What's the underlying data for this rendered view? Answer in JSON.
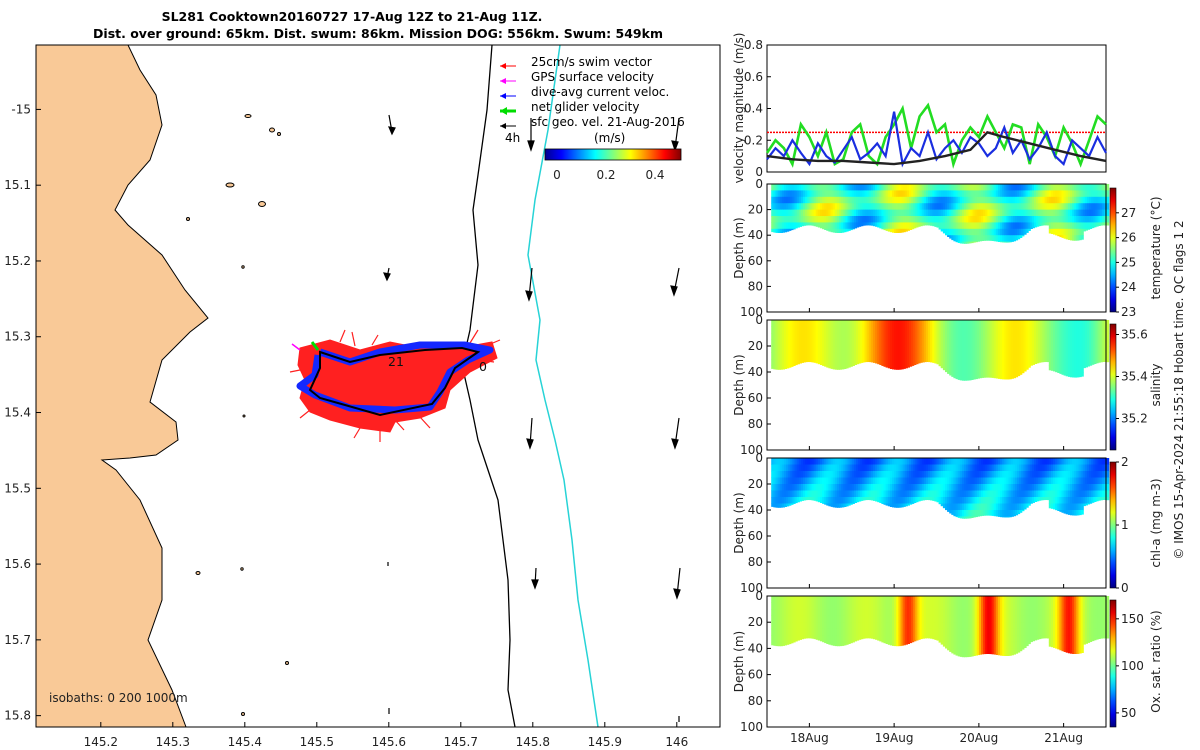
{
  "title": {
    "line1": "SL281 Cooktown20160727 17-Aug 12Z to 21-Aug 11Z.",
    "line2": "Dist. over ground: 65km. Dist. swum: 86km. Mission DOG: 556km. Swum: 549km"
  },
  "map": {
    "xlim": [
      145.11,
      146.06
    ],
    "ylim": [
      -15.815,
      -14.915
    ],
    "x_ticks": [
      145.2,
      145.3,
      145.4,
      145.5,
      145.6,
      145.7,
      145.8,
      145.9,
      146
    ],
    "x_tick_labels": [
      "145.2",
      "145.3",
      "145.4",
      "145.5",
      "145.6",
      "145.7",
      "145.8",
      "145.9",
      "146"
    ],
    "y_ticks": [
      -15,
      -15.1,
      -15.2,
      -15.3,
      -15.4,
      -15.5,
      -15.6,
      -15.7,
      -15.8
    ],
    "y_tick_labels": [
      "-15",
      "15.1",
      "15.2",
      "15.3",
      "15.4",
      "15.5",
      "15.6",
      "15.7",
      "15.8"
    ],
    "legend": [
      {
        "label": "25cm/s swim vector",
        "color": "#ff0000"
      },
      {
        "label": "GPS surface velocity",
        "color": "#ff00ff"
      },
      {
        "label": "dive-avg current veloc.",
        "color": "#0000ff"
      },
      {
        "label": "net glider velocity",
        "color": "#00dd00"
      },
      {
        "label": "sfc geo. vel. 21-Aug-2016",
        "color": "#000000"
      }
    ],
    "colorbar": {
      "label": "(m/s)",
      "ticks": [
        "0",
        "0.2",
        "0.4"
      ],
      "scale_label": "4h"
    },
    "isobaths": "isobaths: 0   200  1000m",
    "track_labels": [
      "21",
      "0"
    ],
    "land_color": "#f9c997",
    "isobath_200_color": "#000000",
    "isobath_1000_color": "#27d3d6",
    "track_color": "#0022ff",
    "swim_color": "#ff0000"
  },
  "chart_data": [
    {
      "type": "line",
      "title": "",
      "ylabel": "velocity magnitude (m/s)",
      "ylim": [
        0,
        0.8
      ],
      "yticks": [
        "0",
        "0.2",
        "0.4",
        "0.6",
        "0.8"
      ],
      "x_range_days": [
        17.5,
        21.5
      ],
      "reference_line": 0.25,
      "series": [
        {
          "name": "net glider velocity",
          "color": "#22dd22",
          "x": [
            17.5,
            17.6,
            17.7,
            17.8,
            17.9,
            18.0,
            18.1,
            18.2,
            18.3,
            18.4,
            18.5,
            18.6,
            18.7,
            18.8,
            18.9,
            19.0,
            19.1,
            19.2,
            19.3,
            19.4,
            19.5,
            19.6,
            19.7,
            19.8,
            19.9,
            20.0,
            20.1,
            20.2,
            20.3,
            20.4,
            20.5,
            20.6,
            20.7,
            20.8,
            20.9,
            21.0,
            21.1,
            21.2,
            21.3,
            21.4,
            21.5
          ],
          "values": [
            0.12,
            0.2,
            0.15,
            0.05,
            0.3,
            0.22,
            0.1,
            0.25,
            0.05,
            0.08,
            0.25,
            0.3,
            0.1,
            0.05,
            0.22,
            0.3,
            0.4,
            0.15,
            0.35,
            0.42,
            0.25,
            0.3,
            0.05,
            0.2,
            0.28,
            0.22,
            0.35,
            0.25,
            0.15,
            0.3,
            0.28,
            0.05,
            0.3,
            0.22,
            0.1,
            0.28,
            0.18,
            0.05,
            0.2,
            0.35,
            0.3
          ]
        },
        {
          "name": "dive-avg current veloc.",
          "color": "#1a2ee0",
          "x": [
            17.5,
            17.6,
            17.7,
            17.8,
            17.9,
            18.0,
            18.1,
            18.2,
            18.3,
            18.4,
            18.5,
            18.6,
            18.7,
            18.8,
            18.9,
            19.0,
            19.1,
            19.2,
            19.3,
            19.4,
            19.5,
            19.6,
            19.7,
            19.8,
            19.9,
            20.0,
            20.1,
            20.2,
            20.3,
            20.4,
            20.5,
            20.6,
            20.7,
            20.8,
            20.9,
            21.0,
            21.1,
            21.2,
            21.3,
            21.4,
            21.5
          ],
          "values": [
            0.08,
            0.15,
            0.1,
            0.2,
            0.12,
            0.05,
            0.18,
            0.1,
            0.06,
            0.14,
            0.22,
            0.08,
            0.12,
            0.18,
            0.1,
            0.38,
            0.05,
            0.15,
            0.1,
            0.25,
            0.08,
            0.15,
            0.2,
            0.12,
            0.22,
            0.18,
            0.1,
            0.15,
            0.28,
            0.12,
            0.2,
            0.08,
            0.15,
            0.25,
            0.1,
            0.05,
            0.2,
            0.15,
            0.1,
            0.22,
            0.12
          ]
        },
        {
          "name": "surface geostrophic",
          "color": "#222222",
          "x": [
            17.5,
            17.8,
            18.1,
            18.4,
            18.7,
            19.0,
            19.3,
            19.6,
            19.9,
            20.1,
            20.3,
            20.6,
            20.9,
            21.2,
            21.5
          ],
          "values": [
            0.1,
            0.08,
            0.07,
            0.07,
            0.06,
            0.05,
            0.07,
            0.1,
            0.14,
            0.25,
            0.22,
            0.18,
            0.14,
            0.1,
            0.07
          ]
        }
      ]
    },
    {
      "type": "heatmap",
      "ylabel": "Depth (m)",
      "colorbar_label": "temperature (°C)",
      "clim": [
        23,
        28
      ],
      "colorbar_ticks": [
        "23",
        "24",
        "25",
        "26",
        "27"
      ],
      "yticks": [
        "0",
        "20",
        "40",
        "60",
        "80",
        "100"
      ],
      "ylim": [
        0,
        100
      ]
    },
    {
      "type": "heatmap",
      "ylabel": "Depth (m)",
      "colorbar_label": "salinity",
      "clim": [
        35.05,
        35.65
      ],
      "colorbar_ticks": [
        "35.2",
        "35.4",
        "35.6"
      ],
      "yticks": [
        "0",
        "20",
        "40",
        "60",
        "80",
        "100"
      ],
      "ylim": [
        0,
        100
      ]
    },
    {
      "type": "heatmap",
      "ylabel": "Depth (m)",
      "colorbar_label": "chl-a (mg m-3)",
      "clim": [
        0,
        2
      ],
      "colorbar_ticks": [
        "0",
        "1",
        "2"
      ],
      "yticks": [
        "0",
        "20",
        "40",
        "60",
        "80",
        "100"
      ],
      "ylim": [
        0,
        100
      ]
    },
    {
      "type": "heatmap",
      "ylabel": "Depth (m)",
      "colorbar_label": "Ox. sat. ratio (%)",
      "clim": [
        35,
        170
      ],
      "colorbar_ticks": [
        "50",
        "100",
        "150"
      ],
      "yticks": [
        "0",
        "20",
        "40",
        "60",
        "80",
        "100"
      ],
      "ylim": [
        0,
        100
      ],
      "x_ticks": [
        "18Aug",
        "19Aug",
        "20Aug",
        "21Aug"
      ]
    }
  ],
  "side_note": "© IMOS 15-Apr-2024 21:55:18 Hobart time. QC flags 1  2"
}
